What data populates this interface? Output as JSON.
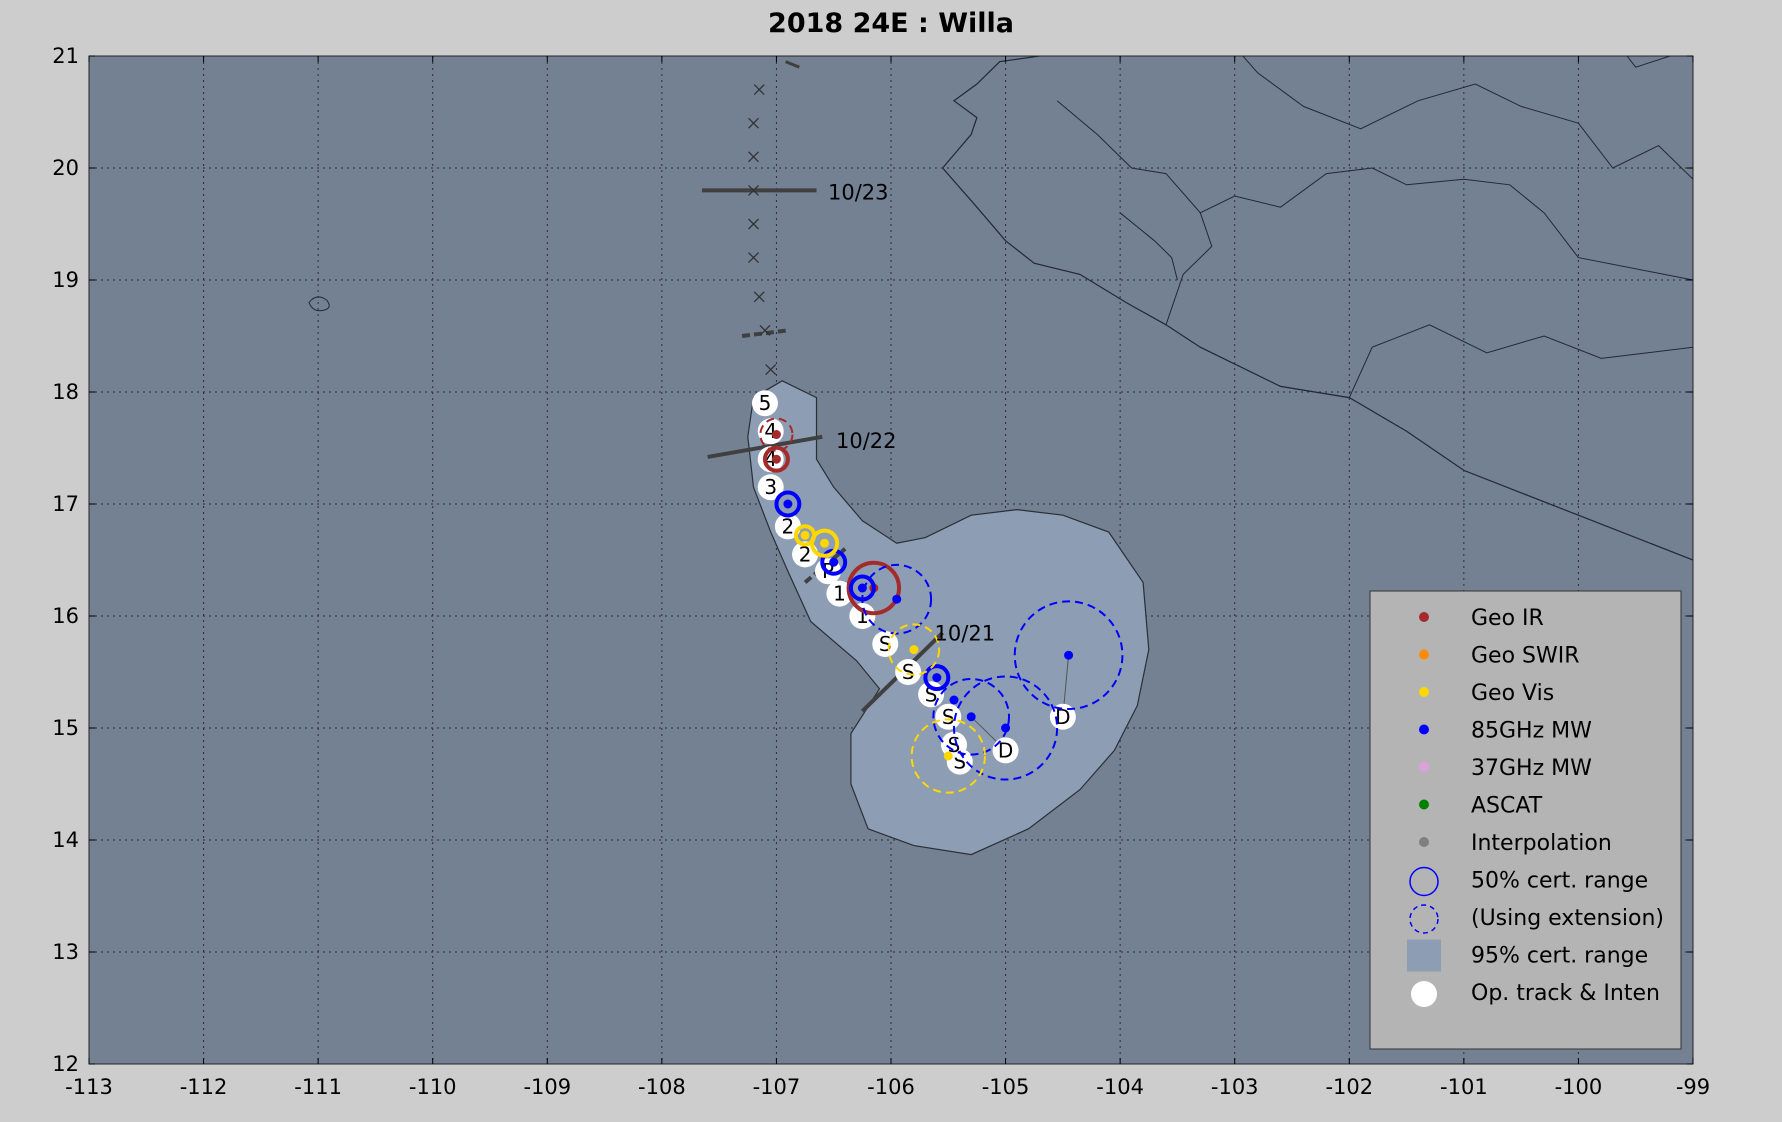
{
  "title": "2018  24E :  Willa",
  "colors": {
    "page_bg": "#cdcdcd",
    "ocean": "#738193",
    "land": "#738193",
    "coast": "#1f2a36",
    "grid": "#2a2f36",
    "cone": "#8d9db3",
    "cone_edge": "#2a2f36",
    "geo_ir": "#a52a2a",
    "geo_swir": "#ff8c00",
    "geo_vis": "#ffd700",
    "mw85": "#0000ff",
    "mw37": "#dda0dd",
    "ascat": "#008000",
    "interp": "#808080",
    "track": "#ffffff",
    "dateline": "#404040",
    "legend_bg": "#b4b4b4"
  },
  "map": {
    "lon_range": [
      -113,
      -99
    ],
    "lat_range": [
      12,
      21
    ],
    "lon_ticks": [
      "-113",
      "-112",
      "-111",
      "-110",
      "-109",
      "-108",
      "-107",
      "-106",
      "-105",
      "-104",
      "-103",
      "-102",
      "-101",
      "-100",
      "-99"
    ],
    "lat_ticks": [
      "12",
      "13",
      "14",
      "15",
      "16",
      "17",
      "18",
      "19",
      "20",
      "21"
    ],
    "grid": true
  },
  "track": [
    {
      "lon": -105.4,
      "lat": 14.7,
      "label": "S"
    },
    {
      "lon": -105.45,
      "lat": 14.85,
      "label": "S"
    },
    {
      "lon": -105.5,
      "lat": 15.1,
      "label": "S"
    },
    {
      "lon": -105.65,
      "lat": 15.3,
      "label": "S"
    },
    {
      "lon": -105.85,
      "lat": 15.5,
      "label": "S"
    },
    {
      "lon": -106.05,
      "lat": 15.75,
      "label": "S"
    },
    {
      "lon": -106.25,
      "lat": 16.0,
      "label": "1"
    },
    {
      "lon": -106.45,
      "lat": 16.2,
      "label": "1"
    },
    {
      "lon": -106.55,
      "lat": 16.4,
      "label": "P"
    },
    {
      "lon": -106.75,
      "lat": 16.55,
      "label": "2"
    },
    {
      "lon": -106.9,
      "lat": 16.8,
      "label": "2"
    },
    {
      "lon": -107.05,
      "lat": 17.15,
      "label": "3"
    },
    {
      "lon": -107.05,
      "lat": 17.4,
      "label": "4"
    },
    {
      "lon": -107.05,
      "lat": 17.65,
      "label": "4"
    },
    {
      "lon": -107.1,
      "lat": 17.9,
      "label": "5"
    },
    {
      "lon": -105.0,
      "lat": 14.8,
      "label": "D"
    },
    {
      "lon": -104.5,
      "lat": 15.1,
      "label": "D"
    }
  ],
  "forecast_x": [
    {
      "lon": -107.05,
      "lat": 18.2
    },
    {
      "lon": -107.1,
      "lat": 18.55
    },
    {
      "lon": -107.15,
      "lat": 18.85
    },
    {
      "lon": -107.2,
      "lat": 19.2
    },
    {
      "lon": -107.2,
      "lat": 19.5
    },
    {
      "lon": -107.2,
      "lat": 19.8
    },
    {
      "lon": -107.2,
      "lat": 20.1
    },
    {
      "lon": -107.2,
      "lat": 20.4
    },
    {
      "lon": -107.15,
      "lat": 20.7
    }
  ],
  "fixes": [
    {
      "type": "geo_ir",
      "lon": -107.0,
      "lat": 17.62,
      "ring": "dashed",
      "r": 0.14
    },
    {
      "type": "geo_ir",
      "lon": -107.0,
      "lat": 17.4,
      "ring": "solid",
      "r": 0.1
    },
    {
      "type": "geo_ir",
      "lon": -106.15,
      "lat": 16.25,
      "ring": "solid",
      "r": 0.22
    },
    {
      "type": "mw85",
      "lon": -106.9,
      "lat": 17.0,
      "ring": "solid",
      "r": 0.1
    },
    {
      "type": "mw85",
      "lon": -106.5,
      "lat": 16.48,
      "ring": "solid",
      "r": 0.1
    },
    {
      "type": "mw85",
      "lon": -106.25,
      "lat": 16.25,
      "ring": "solid",
      "r": 0.1
    },
    {
      "type": "mw85",
      "lon": -105.95,
      "lat": 16.15,
      "ring": "dashed",
      "r": 0.3
    },
    {
      "type": "mw85",
      "lon": -105.6,
      "lat": 15.45,
      "ring": "solid",
      "r": 0.1
    },
    {
      "type": "mw85",
      "lon": -105.45,
      "lat": 15.25,
      "ring": "none",
      "r": 0
    },
    {
      "type": "mw85",
      "lon": -105.3,
      "lat": 15.1,
      "ring": "dashed",
      "r": 0.33
    },
    {
      "type": "mw85",
      "lon": -105.0,
      "lat": 15.0,
      "ring": "dashed",
      "r": 0.45
    },
    {
      "type": "mw85",
      "lon": -104.45,
      "lat": 15.65,
      "ring": "dashed",
      "r": 0.47
    },
    {
      "type": "geo_vis",
      "lon": -106.75,
      "lat": 16.72,
      "ring": "solid",
      "r": 0.08
    },
    {
      "type": "geo_vis",
      "lon": -106.58,
      "lat": 16.65,
      "ring": "solid",
      "r": 0.11
    },
    {
      "type": "geo_vis",
      "lon": -105.8,
      "lat": 15.7,
      "ring": "dashed",
      "r": 0.22
    },
    {
      "type": "geo_vis",
      "lon": -105.5,
      "lat": 14.75,
      "ring": "dashed",
      "r": 0.32
    }
  ],
  "dates": [
    {
      "label": "10/23",
      "lon": -107.3,
      "lat": 19.8,
      "angle": 0
    },
    {
      "label": "10/22",
      "lon": -107.0,
      "lat": 17.5,
      "angle": -9
    },
    {
      "label": "10/21",
      "lon": -106.0,
      "lat": 15.35,
      "angle": -42
    }
  ],
  "legend": {
    "items": [
      {
        "label": "Geo IR",
        "kind": "dot",
        "color_key": "geo_ir"
      },
      {
        "label": "Geo SWIR",
        "kind": "dot",
        "color_key": "geo_swir"
      },
      {
        "label": "Geo Vis",
        "kind": "dot",
        "color_key": "geo_vis"
      },
      {
        "label": "85GHz MW",
        "kind": "dot",
        "color_key": "mw85"
      },
      {
        "label": "37GHz MW",
        "kind": "dot",
        "color_key": "mw37"
      },
      {
        "label": "ASCAT",
        "kind": "dot",
        "color_key": "ascat"
      },
      {
        "label": "Interpolation",
        "kind": "dot",
        "color_key": "interp"
      },
      {
        "label": "50% cert. range",
        "kind": "ring",
        "color_key": "mw85"
      },
      {
        "label": "(Using extension)",
        "kind": "ring-dashed",
        "color_key": "mw85"
      },
      {
        "label": "95% cert. range",
        "kind": "square",
        "color_key": "cone"
      },
      {
        "label": "Op. track & Inten",
        "kind": "bigdot",
        "color_key": "track"
      }
    ]
  }
}
